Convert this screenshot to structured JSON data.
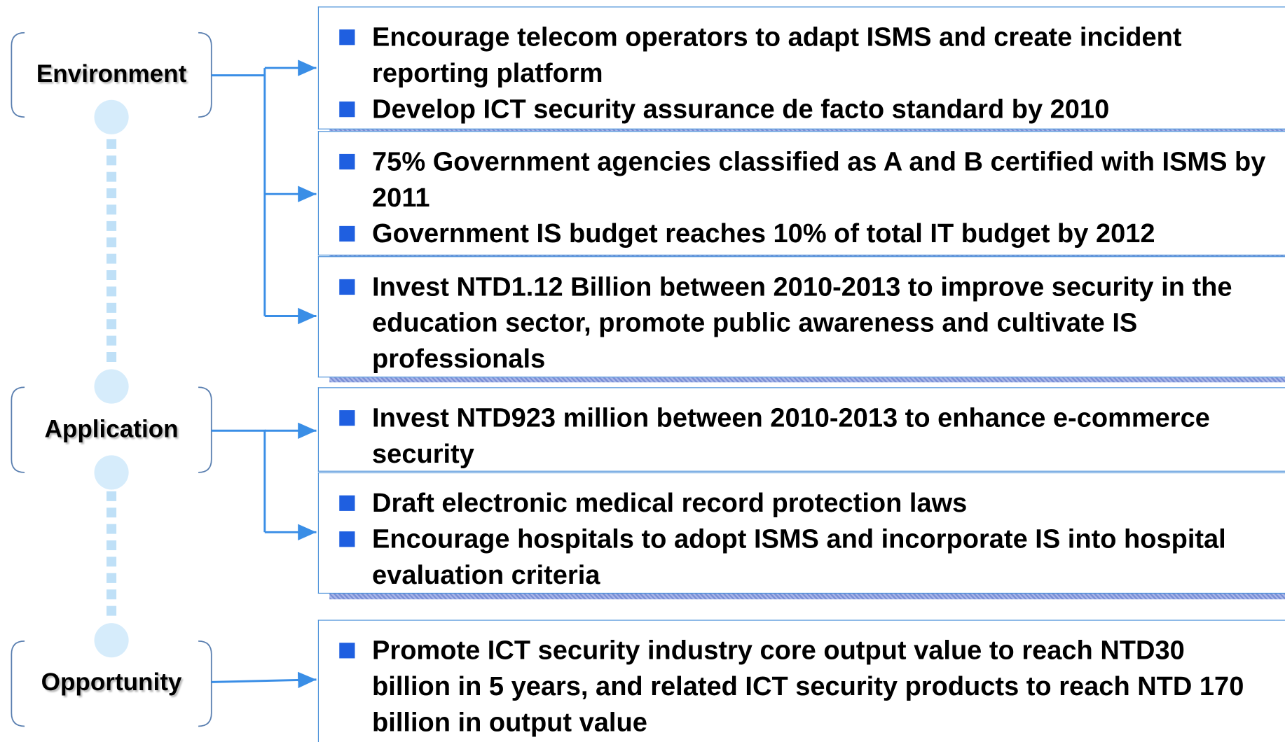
{
  "groups": [
    {
      "label": "Environment",
      "boxes": [
        [
          "Encourage telecom operators to adapt ISMS and create incident reporting platform",
          "Develop ICT security assurance de facto standard by 2010"
        ],
        [
          "75% Government agencies classified as A and B certified with ISMS by 2011",
          "Government IS budget reaches 10% of total IT budget by 2012"
        ],
        [
          "Invest NTD1.12 Billion between 2010-2013 to improve security in the education sector, promote public awareness and cultivate IS professionals"
        ]
      ]
    },
    {
      "label": "Application",
      "boxes": [
        [
          "Invest NTD923 million between 2010-2013 to enhance e-commerce security"
        ],
        [
          "Draft electronic medical record protection laws",
          "Encourage hospitals to adopt ISMS and incorporate IS into hospital evaluation criteria"
        ]
      ]
    },
    {
      "label": "Opportunity",
      "boxes": [
        [
          "Promote ICT security industry core output value to reach NTD30 billion in 5 years, and related ICT security products to reach NTD 170 billion in output value"
        ]
      ]
    }
  ]
}
